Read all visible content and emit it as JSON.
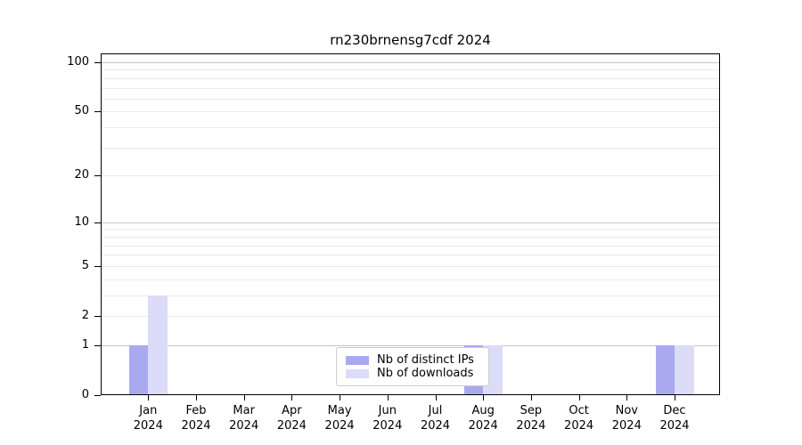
{
  "chart_data": {
    "type": "bar",
    "title": "rn230brnensg7cdf 2024",
    "categories": [
      "Jan",
      "Feb",
      "Mar",
      "Apr",
      "May",
      "Jun",
      "Jul",
      "Aug",
      "Sep",
      "Oct",
      "Nov",
      "Dec"
    ],
    "category_year": "2024",
    "series": [
      {
        "name": "Nb of distinct IPs",
        "color": "#a9a9f0",
        "values": [
          1,
          0,
          0,
          0,
          0,
          0,
          0,
          1,
          0,
          0,
          0,
          1
        ]
      },
      {
        "name": "Nb of downloads",
        "color": "#dcdcf8",
        "values": [
          3,
          0,
          0,
          0,
          0,
          0,
          0,
          1,
          0,
          0,
          0,
          1
        ]
      }
    ],
    "xlabel": "",
    "ylabel": "",
    "yscale": "log1p",
    "ylim": [
      0,
      113
    ],
    "yticks": [
      0,
      1,
      2,
      5,
      10,
      20,
      50,
      100
    ],
    "major_grid_values": [
      1,
      10,
      100
    ],
    "minor_grid_values": [
      2,
      3,
      4,
      5,
      6,
      7,
      8,
      9,
      20,
      30,
      40,
      50,
      60,
      70,
      80,
      90
    ],
    "grid": true,
    "legend_position": "bottom-center",
    "colors": {
      "major_grid": "#c4c4c4",
      "minor_grid": "#e9e9e9",
      "axis": "#000000",
      "legend_border": "#cccccc",
      "background": "#ffffff"
    }
  }
}
